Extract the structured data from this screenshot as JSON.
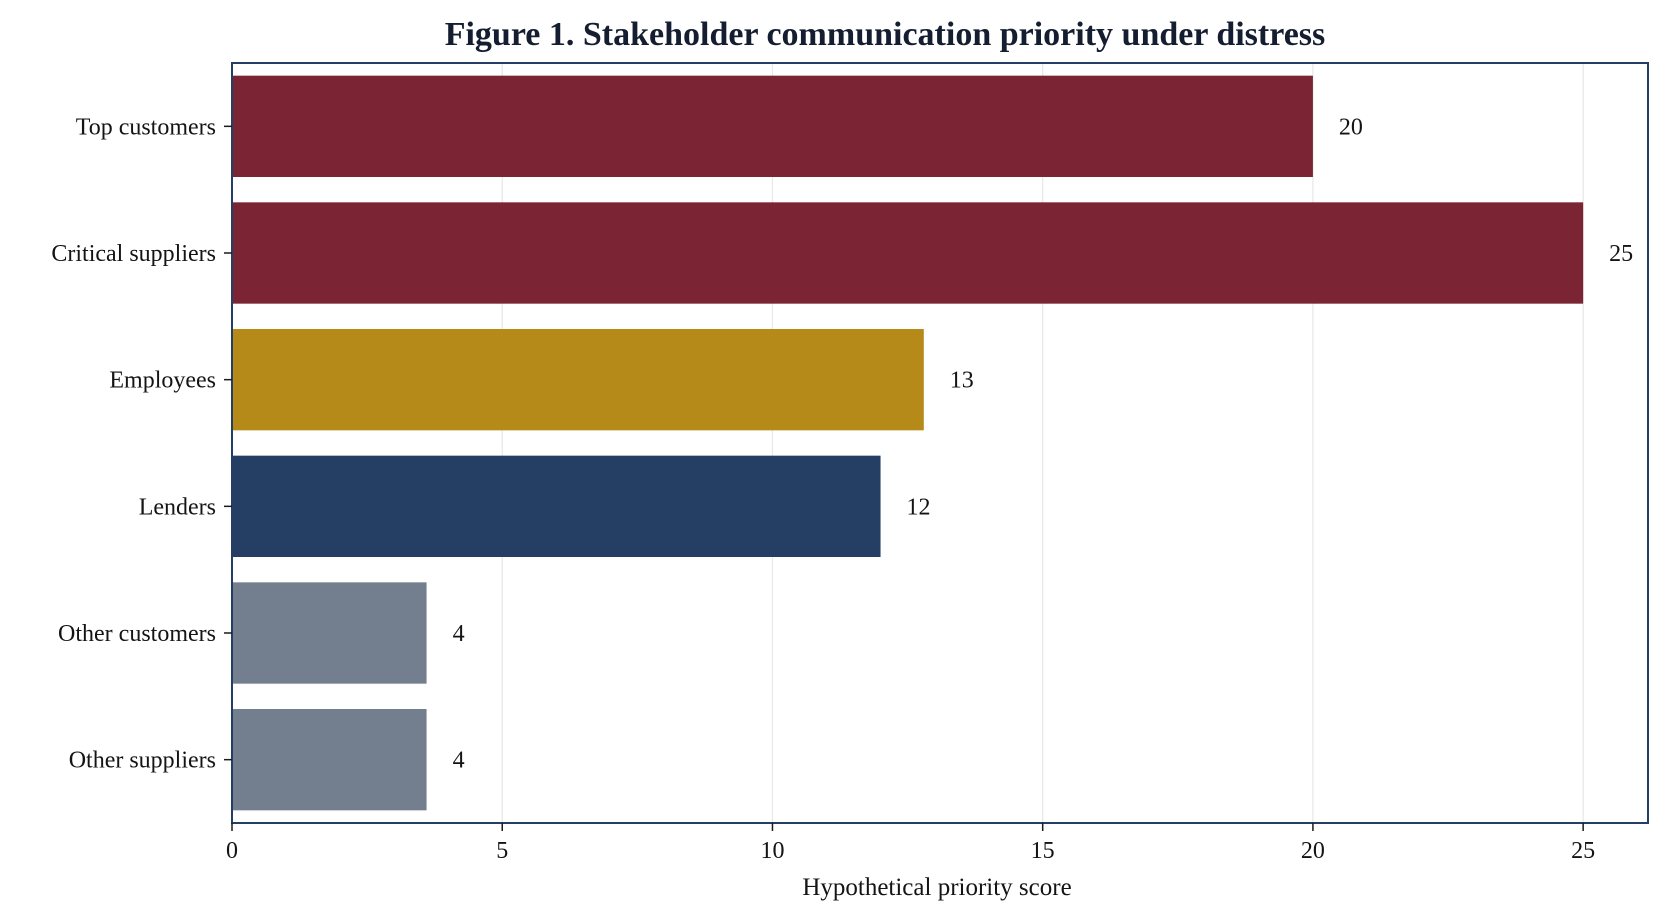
{
  "chart_data": {
    "type": "bar",
    "orientation": "horizontal",
    "title": "Figure 1. Stakeholder communication priority under distress",
    "xlabel": "Hypothetical priority score",
    "ylabel": "",
    "categories": [
      "Top customers",
      "Critical suppliers",
      "Employees",
      "Lenders",
      "Other customers",
      "Other suppliers"
    ],
    "values": [
      20,
      25,
      12.8,
      12,
      3.6,
      3.6
    ],
    "value_labels": [
      "20",
      "25",
      "13",
      "12",
      "4",
      "4"
    ],
    "bar_colors": [
      "#7b2433",
      "#7b2433",
      "#b58a18",
      "#243f63",
      "#737f8f",
      "#737f8f"
    ],
    "xlim": [
      0,
      26.2
    ],
    "xticks": [
      0,
      5,
      10,
      15,
      20,
      25
    ],
    "xtick_labels": [
      "0",
      "5",
      "10",
      "15",
      "20",
      "25"
    ],
    "grid": "vertical",
    "legend": "none",
    "frame_color": "#243f63"
  }
}
